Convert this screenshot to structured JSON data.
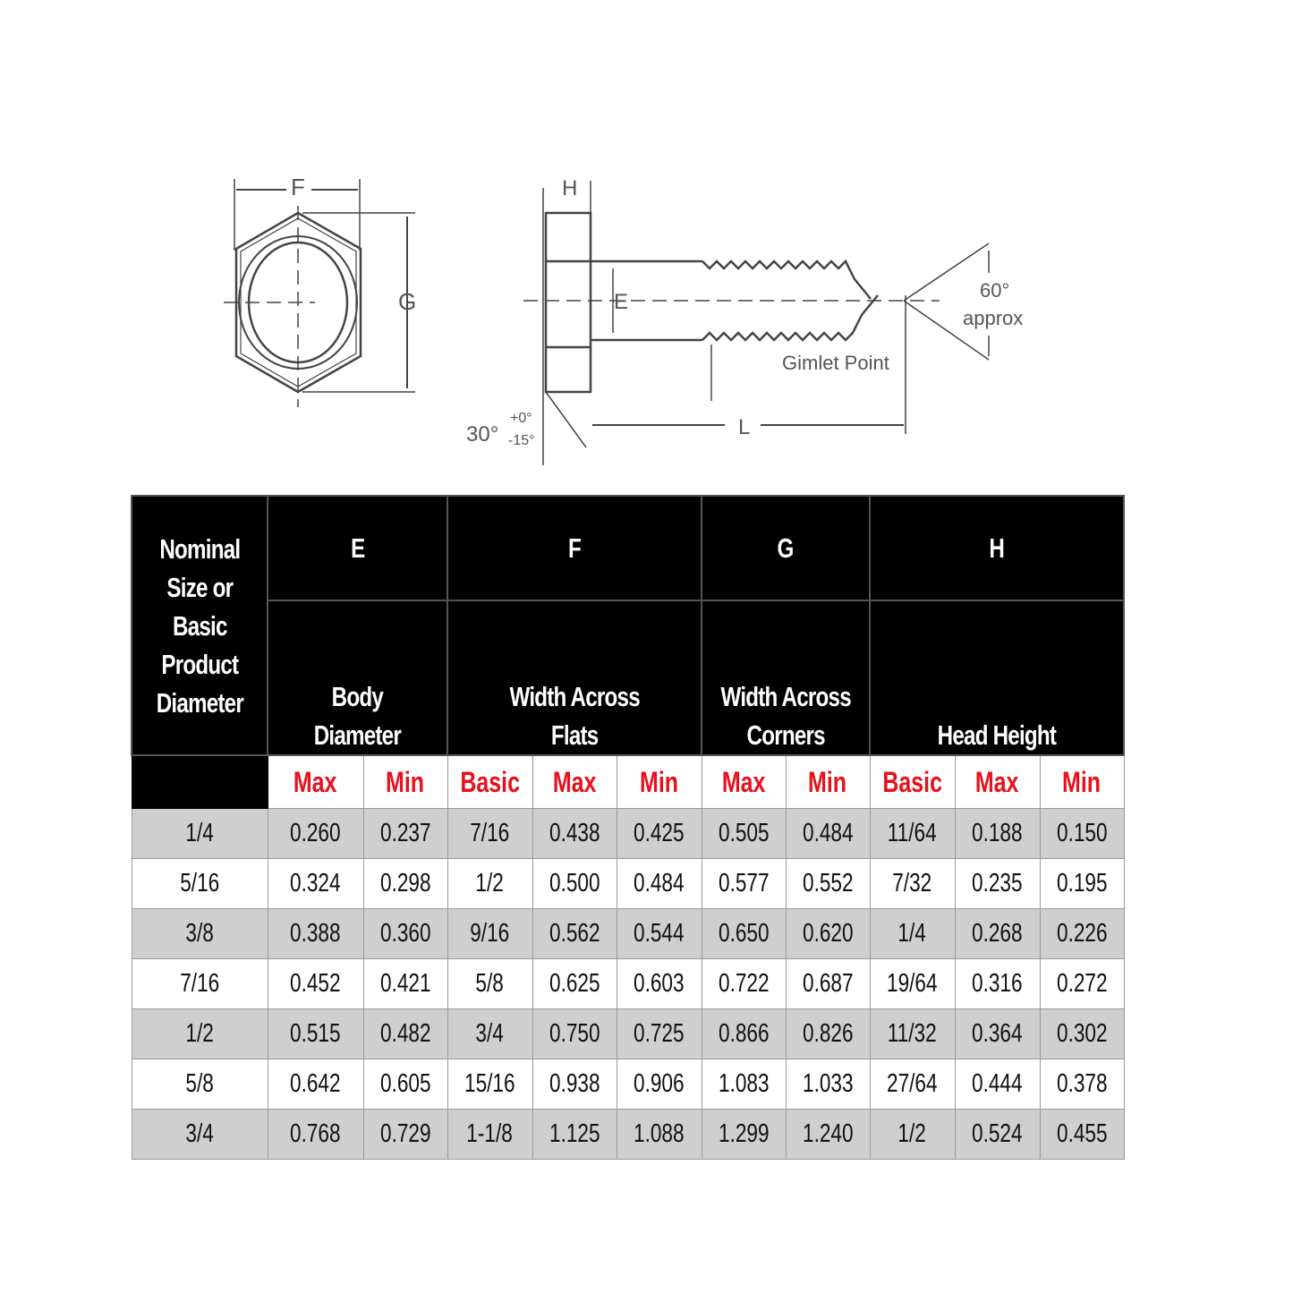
{
  "drawing": {
    "labels": {
      "F": "F",
      "G": "G",
      "H": "H",
      "E": "E",
      "L": "L",
      "angle_tip": "60°",
      "approx": "approx",
      "gimlet": "Gimlet Point",
      "angle_head": "30°",
      "tol_plus": "+0°",
      "tol_minus": "-15°"
    }
  },
  "table": {
    "nominal_header": [
      "Nominal",
      "Size or",
      "Basic",
      "Product",
      "Diameter"
    ],
    "groups": [
      {
        "letter": "E",
        "desc": [
          "Body",
          "Diameter"
        ]
      },
      {
        "letter": "F",
        "desc": [
          "Width Across",
          "Flats"
        ]
      },
      {
        "letter": "G",
        "desc": [
          "Width Across",
          "Corners"
        ]
      },
      {
        "letter": "H",
        "desc": [
          "Head Height"
        ]
      }
    ],
    "subheaders": [
      "Max",
      "Min",
      "Basic",
      "Max",
      "Min",
      "Max",
      "Min",
      "Basic",
      "Max",
      "Min"
    ],
    "header_accent": "#e8101c",
    "rows": [
      [
        "1/4",
        "0.260",
        "0.237",
        "7/16",
        "0.438",
        "0.425",
        "0.505",
        "0.484",
        "11/64",
        "0.188",
        "0.150"
      ],
      [
        "5/16",
        "0.324",
        "0.298",
        "1/2",
        "0.500",
        "0.484",
        "0.577",
        "0.552",
        "7/32",
        "0.235",
        "0.195"
      ],
      [
        "3/8",
        "0.388",
        "0.360",
        "9/16",
        "0.562",
        "0.544",
        "0.650",
        "0.620",
        "1/4",
        "0.268",
        "0.226"
      ],
      [
        "7/16",
        "0.452",
        "0.421",
        "5/8",
        "0.625",
        "0.603",
        "0.722",
        "0.687",
        "19/64",
        "0.316",
        "0.272"
      ],
      [
        "1/2",
        "0.515",
        "0.482",
        "3/4",
        "0.750",
        "0.725",
        "0.866",
        "0.826",
        "11/32",
        "0.364",
        "0.302"
      ],
      [
        "5/8",
        "0.642",
        "0.605",
        "15/16",
        "0.938",
        "0.906",
        "1.083",
        "1.033",
        "27/64",
        "0.444",
        "0.378"
      ],
      [
        "3/4",
        "0.768",
        "0.729",
        "1-1/8",
        "1.125",
        "1.088",
        "1.299",
        "1.240",
        "1/2",
        "0.524",
        "0.455"
      ]
    ]
  }
}
